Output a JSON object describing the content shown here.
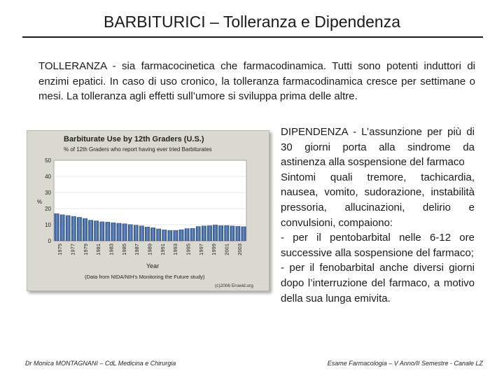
{
  "slide": {
    "title": "BARBITURICI – Tolleranza e Dipendenza",
    "intro": {
      "lead": "TOLLERANZA",
      "text": " - sia farmacocinetica che farmacodinamica. Tutti sono potenti induttori di enzimi epatici. In caso di uso cronico, la tolleranza farmacodinamica cresce per settimane o mesi. La tolleranza agli effetti sull’umore si sviluppa prima delle altre."
    },
    "dipendenza": {
      "lead": "DIPENDENZA",
      "p1": " - L’assunzione per più di 30 giorni porta alla sindrome da astinenza alla sospensione del farmaco",
      "p2": "Sintomi quali tremore, tachicardia, nausea, vomito, sudorazione, instabilità pressoria, allucinazioni, delirio e convulsioni, compaiono:",
      "p3": "- per il pentobarbital nelle 6-12 ore successive alla sospensione del farmaco;",
      "p4": "- per il fenobarbital anche diversi giorni dopo l’interruzione del farmaco, a motivo della sua lunga emivita."
    },
    "footer": {
      "left": "Dr Monica MONTAGNANI – CdL Medicina e Chirurgia",
      "right": "Esame Farmacologia – V Anno/II Semestre - Canale LZ"
    }
  },
  "chart_data": {
    "type": "bar",
    "title": "Barbiturate Use by 12th Graders (U.S.)",
    "subtitle": "% of 12th Graders who report having ever tried Barbiturates",
    "xlabel": "Year",
    "ylabel": "%",
    "source": "(Data from NIDA/NIH's Monitoring the Future study)",
    "credit": "(c)2006 Erowid.org",
    "ylim": [
      0,
      50
    ],
    "yticks": [
      "0",
      "10",
      "20",
      "30",
      "40",
      "50"
    ],
    "xticks": [
      "1975",
      "1977",
      "1979",
      "1981",
      "1983",
      "1985",
      "1987",
      "1989",
      "1991",
      "1993",
      "1995",
      "1997",
      "1999",
      "2001",
      "2003"
    ],
    "bar_color": "#4a6fa5",
    "values": [
      16.9,
      16.2,
      15.7,
      15.2,
      14.6,
      13.9,
      12.8,
      12.4,
      11.8,
      11.6,
      11.2,
      10.9,
      10.6,
      10.1,
      9.7,
      9.3,
      8.6,
      8.1,
      7.4,
      6.8,
      6.5,
      6.5,
      6.9,
      7.6,
      7.7,
      8.9,
      9.2,
      9.4,
      9.8,
      9.4,
      9.5,
      9.2,
      9.0,
      8.8
    ]
  }
}
